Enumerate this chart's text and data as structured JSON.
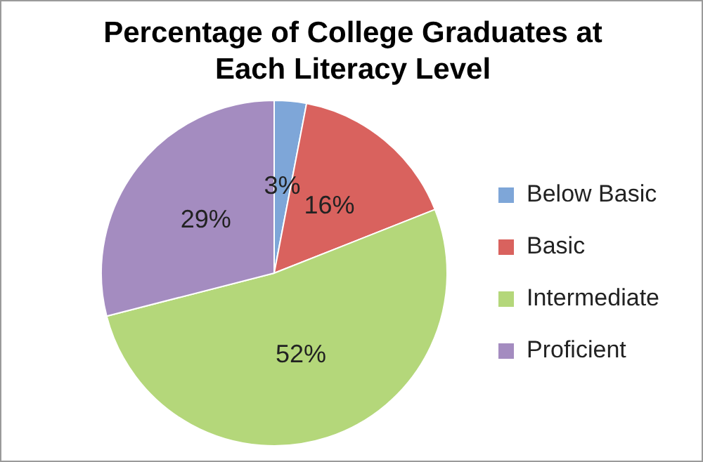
{
  "chart_data": {
    "type": "pie",
    "title": "Percentage of College Graduates at Each Literacy Level",
    "categories": [
      "Below Basic",
      "Basic",
      "Intermediate",
      "Proficient"
    ],
    "values": [
      3,
      16,
      52,
      29
    ],
    "colors": [
      "#7ea6d8",
      "#d9625e",
      "#b4d77a",
      "#a48cc0"
    ],
    "value_labels": [
      "3%",
      "16%",
      "52%",
      "29%"
    ],
    "legend": "right"
  }
}
